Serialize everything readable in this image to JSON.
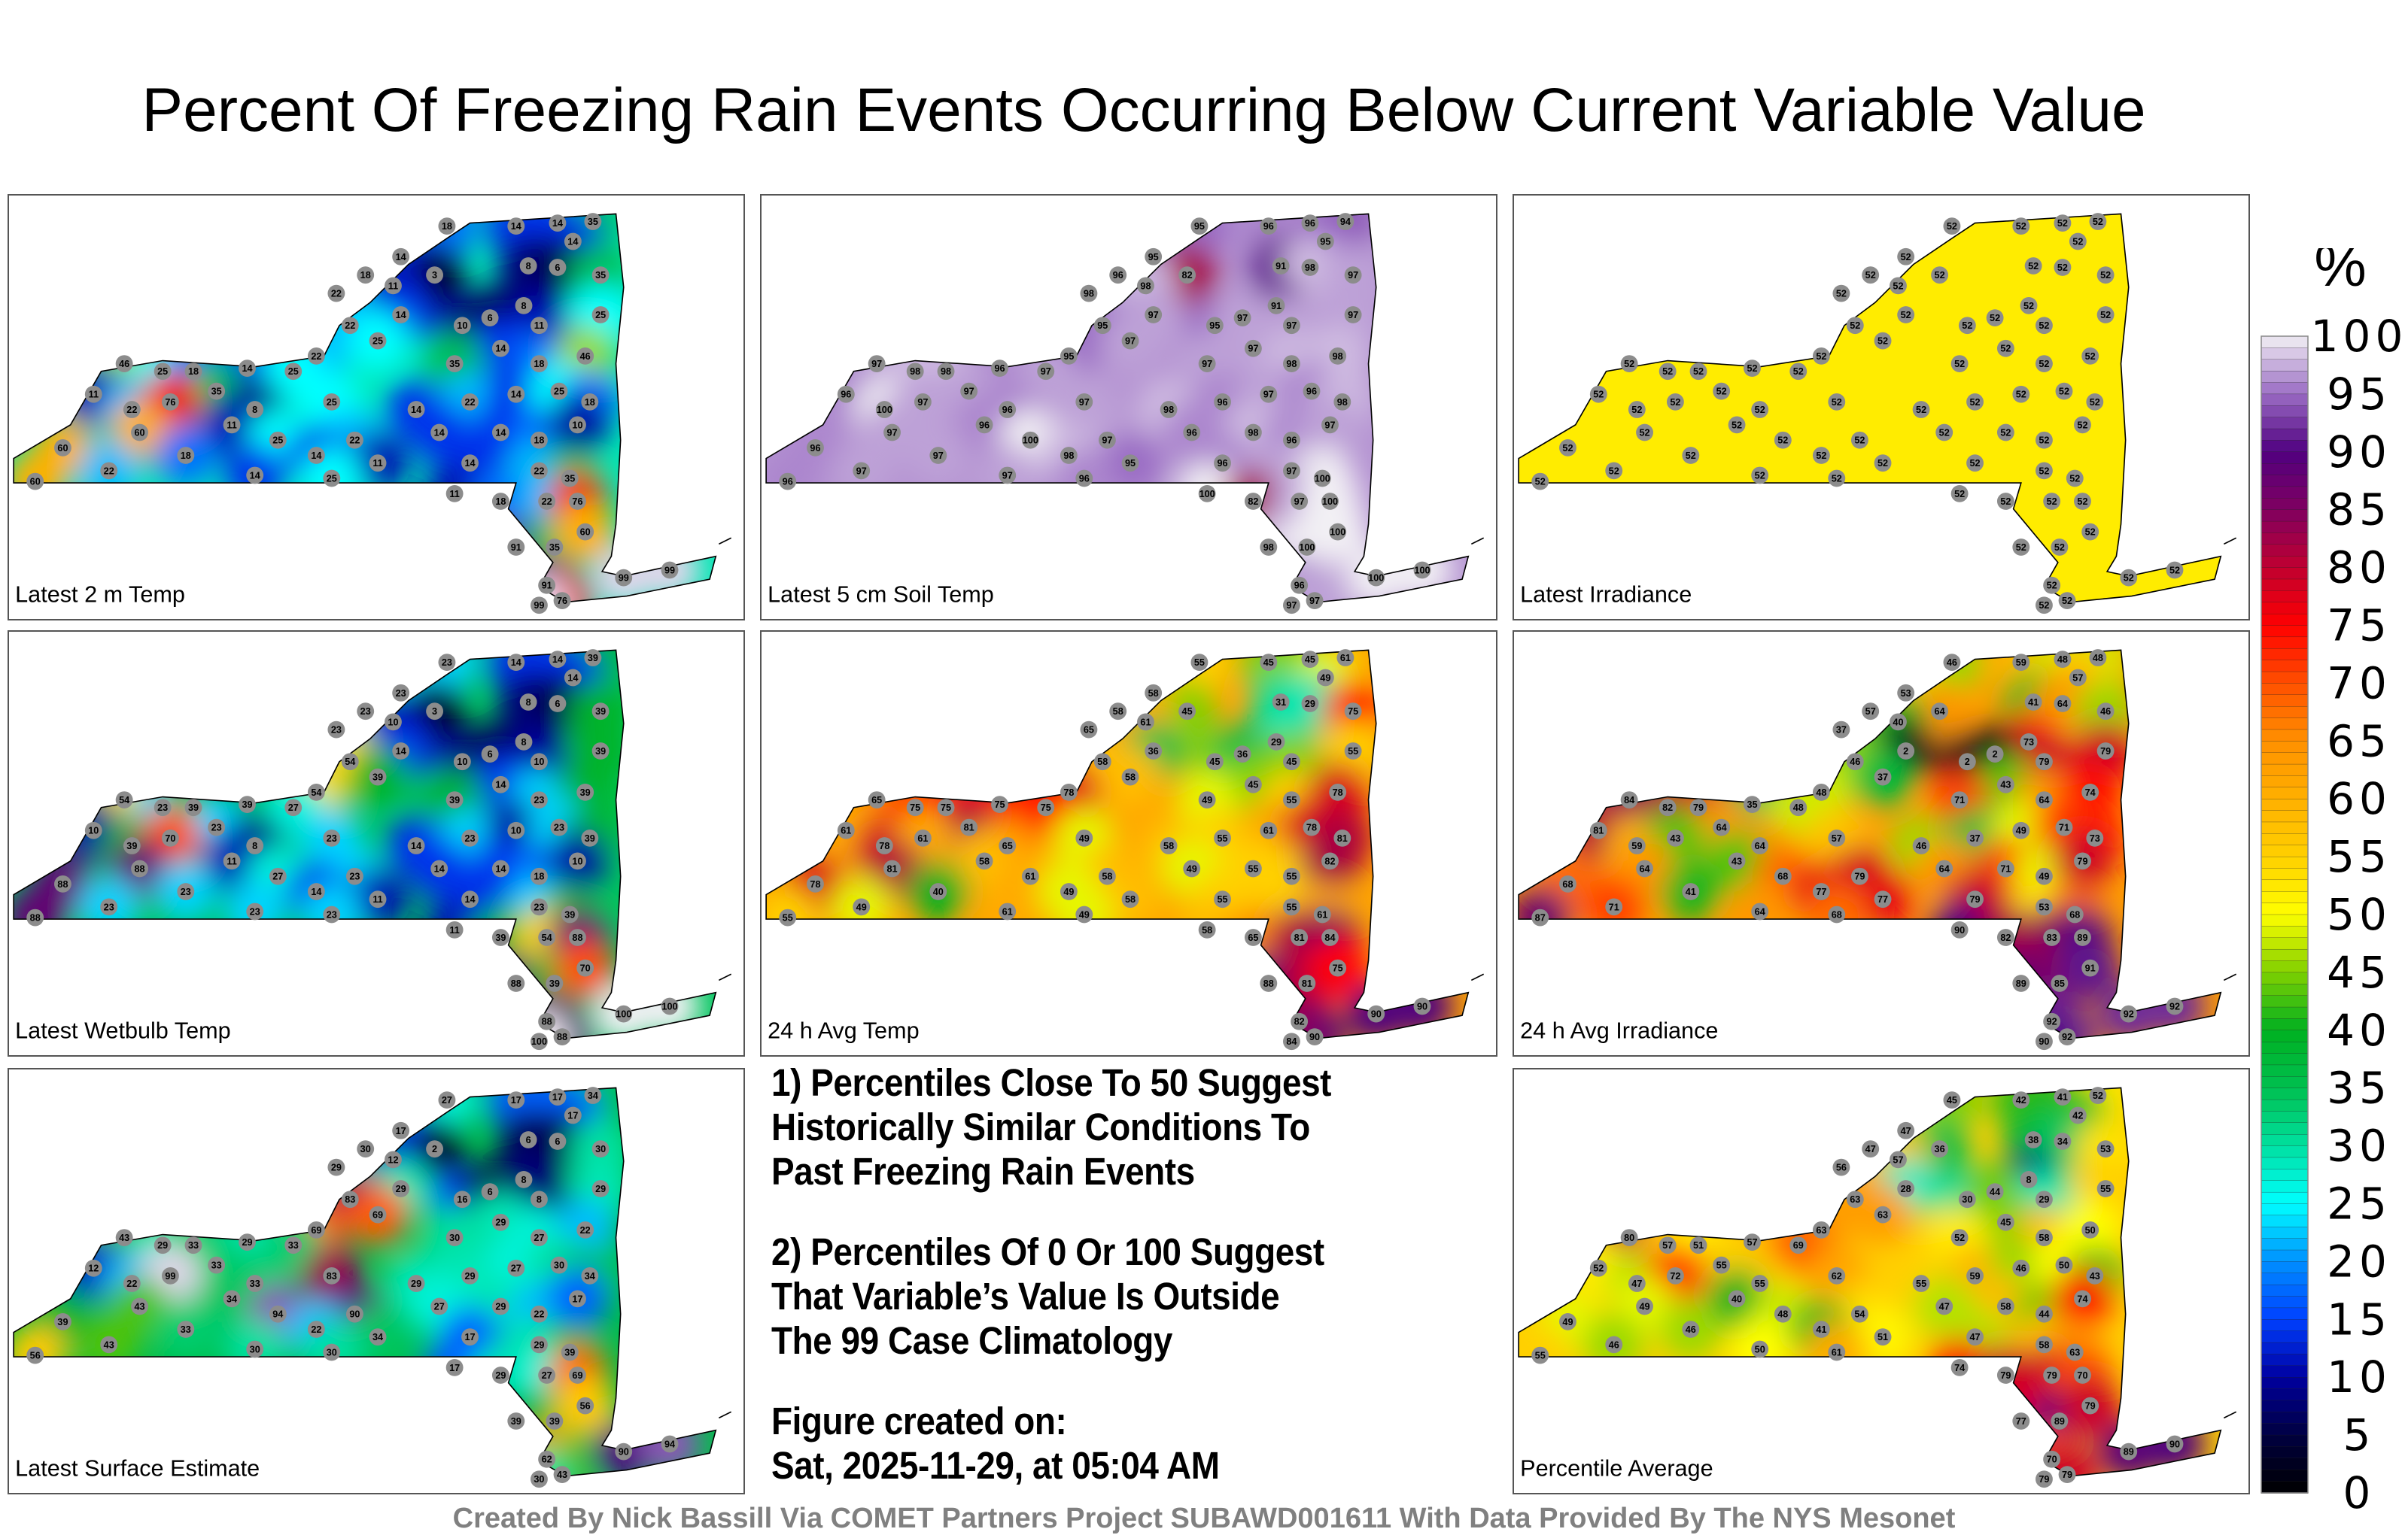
{
  "title": "Percent Of Freezing Rain Events Occurring Below Current Variable Value",
  "colorbar": {
    "unit": "%",
    "ticks": [
      "100",
      "95",
      "90",
      "85",
      "80",
      "75",
      "70",
      "65",
      "60",
      "55",
      "50",
      "45",
      "40",
      "35",
      "30",
      "25",
      "20",
      "15",
      "10",
      "5",
      "0"
    ],
    "range": [
      0,
      100
    ]
  },
  "notes": {
    "note1": [
      "1) Percentiles Close To 50 Suggest",
      "Historically Similar Conditions To",
      "Past Freezing Rain Events"
    ],
    "note2": [
      "2) Percentiles Of 0 Or 100 Suggest",
      "That Variable’s Value Is Outside",
      "The 99 Case Climatology"
    ],
    "created": [
      "Figure created on:",
      "Sat, 2025-11-29, at 05:04 AM"
    ]
  },
  "footer": "Created By Nick Bassill Via COMET Partners Project SUBAWD001611 With Data Provided By The NYS Mesonet",
  "chart_data": {
    "type": "heatmap",
    "title": "Percent Of Freezing Rain Events Occurring Below Current Variable Value",
    "colorbar_label": "%",
    "panels": [
      {
        "label": "Latest 2 m Temp",
        "values": [
          18,
          14,
          14,
          35,
          14,
          14,
          3,
          8,
          6,
          35,
          18,
          11,
          22,
          8,
          14,
          10,
          6,
          11,
          25,
          22,
          25,
          14,
          35,
          18,
          46,
          22,
          14,
          25,
          46,
          25,
          18,
          35,
          11,
          22,
          76,
          8,
          25,
          14,
          22,
          14,
          25,
          18,
          60,
          11,
          25,
          22,
          14,
          14,
          18,
          10,
          60,
          18,
          14,
          11,
          14,
          22,
          35,
          60,
          22,
          14,
          25,
          11,
          18,
          22,
          76,
          91,
          35,
          60,
          91,
          76,
          99,
          99,
          99
        ]
      },
      {
        "label": "Latest 5 cm Soil Temp",
        "values": [
          95,
          96,
          96,
          94,
          95,
          95,
          82,
          91,
          98,
          97,
          96,
          98,
          98,
          91,
          97,
          95,
          97,
          97,
          97,
          95,
          97,
          97,
          97,
          98,
          98,
          95,
          96,
          97,
          97,
          98,
          98,
          97,
          96,
          100,
          97,
          96,
          97,
          98,
          96,
          97,
          96,
          98,
          97,
          96,
          100,
          97,
          96,
          98,
          96,
          97,
          96,
          97,
          98,
          95,
          96,
          97,
          100,
          96,
          97,
          97,
          96,
          100,
          82,
          97,
          100,
          98,
          100,
          100,
          96,
          97,
          100,
          100,
          97
        ]
      },
      {
        "label": "Latest Irradiance",
        "values": [
          52,
          52,
          52,
          52,
          52,
          52,
          52,
          52,
          52,
          52,
          52,
          52,
          52,
          52,
          52,
          52,
          52,
          52,
          52,
          52,
          52,
          52,
          52,
          52,
          52,
          52,
          52,
          52,
          52,
          52,
          52,
          52,
          52,
          52,
          52,
          52,
          52,
          52,
          52,
          52,
          52,
          52,
          52,
          52,
          52,
          52,
          52,
          52,
          52,
          52,
          52,
          52,
          52,
          52,
          52,
          52,
          52,
          52,
          52,
          52,
          52,
          52,
          52,
          52,
          52,
          52,
          52,
          52,
          52,
          52,
          52,
          52,
          52
        ]
      },
      {
        "label": "Latest Wetbulb Temp",
        "values": [
          23,
          14,
          14,
          39,
          14,
          23,
          3,
          8,
          6,
          39,
          23,
          10,
          23,
          8,
          14,
          10,
          6,
          10,
          39,
          54,
          39,
          14,
          39,
          23,
          39,
          54,
          39,
          27,
          54,
          23,
          39,
          23,
          10,
          39,
          70,
          8,
          23,
          14,
          23,
          10,
          23,
          39,
          88,
          11,
          27,
          23,
          14,
          14,
          18,
          10,
          88,
          23,
          14,
          11,
          14,
          23,
          39,
          88,
          23,
          23,
          23,
          11,
          39,
          54,
          88,
          88,
          39,
          70,
          88,
          88,
          100,
          100,
          100
        ]
      },
      {
        "label": "24 h Avg Temp",
        "values": [
          55,
          45,
          45,
          61,
          49,
          58,
          45,
          31,
          29,
          75,
          58,
          61,
          65,
          29,
          36,
          45,
          36,
          45,
          55,
          58,
          58,
          45,
          49,
          55,
          78,
          78,
          75,
          75,
          65,
          75,
          75,
          81,
          61,
          78,
          61,
          65,
          49,
          58,
          55,
          61,
          78,
          81,
          81,
          58,
          61,
          58,
          49,
          55,
          55,
          82,
          78,
          40,
          49,
          58,
          55,
          55,
          61,
          55,
          49,
          61,
          49,
          58,
          65,
          81,
          84,
          88,
          81,
          75,
          82,
          90,
          90,
          90,
          84
        ]
      },
      {
        "label": "24 h Avg Irradiance",
        "values": [
          46,
          59,
          48,
          48,
          57,
          53,
          64,
          41,
          64,
          46,
          57,
          40,
          37,
          73,
          2,
          2,
          2,
          79,
          79,
          46,
          37,
          43,
          71,
          64,
          74,
          48,
          35,
          48,
          84,
          82,
          79,
          64,
          81,
          59,
          43,
          64,
          57,
          46,
          37,
          49,
          71,
          73,
          64,
          43,
          68,
          79,
          64,
          71,
          49,
          79,
          68,
          41,
          77,
          77,
          79,
          53,
          68,
          87,
          71,
          64,
          68,
          90,
          82,
          83,
          89,
          89,
          85,
          91,
          92,
          92,
          92,
          92,
          90
        ]
      },
      {
        "label": "Latest Surface Estimate",
        "values": [
          27,
          17,
          17,
          34,
          17,
          17,
          2,
          6,
          6,
          30,
          30,
          12,
          29,
          8,
          29,
          16,
          6,
          8,
          29,
          83,
          69,
          29,
          30,
          27,
          22,
          69,
          29,
          33,
          43,
          29,
          33,
          33,
          12,
          22,
          99,
          33,
          83,
          29,
          29,
          27,
          30,
          34,
          43,
          34,
          94,
          90,
          27,
          29,
          22,
          17,
          39,
          33,
          22,
          34,
          17,
          29,
          39,
          56,
          43,
          30,
          30,
          17,
          29,
          27,
          69,
          39,
          39,
          56,
          62,
          43,
          90,
          94,
          30
        ]
      },
      {
        "label": "Percentile Average",
        "values": [
          45,
          42,
          41,
          52,
          42,
          47,
          36,
          38,
          34,
          53,
          47,
          57,
          56,
          8,
          28,
          30,
          44,
          29,
          55,
          63,
          63,
          45,
          52,
          58,
          50,
          63,
          57,
          69,
          80,
          57,
          51,
          55,
          52,
          47,
          72,
          55,
          62,
          55,
          59,
          46,
          50,
          43,
          49,
          40,
          48,
          54,
          47,
          58,
          44,
          74,
          49,
          46,
          41,
          51,
          47,
          58,
          63,
          55,
          46,
          50,
          61,
          74,
          79,
          79,
          70,
          77,
          89,
          79,
          70,
          79,
          89,
          90,
          79
        ]
      }
    ]
  }
}
